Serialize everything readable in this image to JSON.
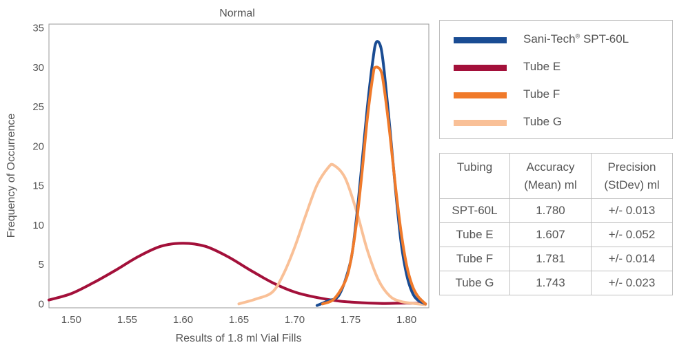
{
  "chart_data": {
    "type": "line",
    "title": "Normal",
    "xlabel": "Results of 1.8 ml Vial Fills",
    "ylabel": "Frequency of Occurrence",
    "xlim": [
      1.48,
      1.82
    ],
    "ylim": [
      -0.5,
      35.5
    ],
    "x_ticks": [
      "1.50",
      "1.55",
      "1.60",
      "1.65",
      "1.70",
      "1.75",
      "1.80"
    ],
    "y_ticks": [
      "0",
      "5",
      "10",
      "15",
      "20",
      "25",
      "30",
      "35"
    ],
    "grid": false,
    "legend_placement": "right",
    "series": [
      {
        "name": "Sani-Tech® SPT-60L",
        "color": "#1a4c93",
        "points": [
          [
            1.72,
            -0.2
          ],
          [
            1.73,
            0.4
          ],
          [
            1.74,
            1.2
          ],
          [
            1.75,
            5.4
          ],
          [
            1.755,
            10.6
          ],
          [
            1.76,
            17.6
          ],
          [
            1.765,
            25.0
          ],
          [
            1.77,
            31.0
          ],
          [
            1.773,
            33.2
          ],
          [
            1.777,
            32.6
          ],
          [
            1.78,
            29.6
          ],
          [
            1.785,
            22.5
          ],
          [
            1.79,
            14.8
          ],
          [
            1.795,
            8.0
          ],
          [
            1.8,
            3.8
          ],
          [
            1.805,
            1.5
          ],
          [
            1.81,
            0.5
          ],
          [
            1.817,
            0.0
          ]
        ]
      },
      {
        "name": "Tube E",
        "color": "#a3103a",
        "points": [
          [
            1.48,
            0.5
          ],
          [
            1.5,
            1.3
          ],
          [
            1.52,
            2.7
          ],
          [
            1.54,
            4.3
          ],
          [
            1.56,
            6.0
          ],
          [
            1.58,
            7.3
          ],
          [
            1.6,
            7.7
          ],
          [
            1.62,
            7.3
          ],
          [
            1.64,
            6.0
          ],
          [
            1.66,
            4.3
          ],
          [
            1.68,
            2.7
          ],
          [
            1.7,
            1.5
          ],
          [
            1.72,
            0.8
          ],
          [
            1.74,
            0.35
          ],
          [
            1.76,
            0.15
          ],
          [
            1.78,
            0.05
          ],
          [
            1.8,
            0.1
          ],
          [
            1.817,
            0.0
          ]
        ]
      },
      {
        "name": "Tube F",
        "color": "#f07a2a",
        "points": [
          [
            1.725,
            0.0
          ],
          [
            1.735,
            0.6
          ],
          [
            1.745,
            2.8
          ],
          [
            1.75,
            5.4
          ],
          [
            1.755,
            10.0
          ],
          [
            1.76,
            16.4
          ],
          [
            1.765,
            23.6
          ],
          [
            1.77,
            29.0
          ],
          [
            1.772,
            30.0
          ],
          [
            1.777,
            29.6
          ],
          [
            1.78,
            27.4
          ],
          [
            1.785,
            21.7
          ],
          [
            1.79,
            15.1
          ],
          [
            1.795,
            9.3
          ],
          [
            1.8,
            5.0
          ],
          [
            1.805,
            2.4
          ],
          [
            1.81,
            1.0
          ],
          [
            1.817,
            0.0
          ]
        ]
      },
      {
        "name": "Tube G",
        "color": "#f9c097",
        "points": [
          [
            1.65,
            0.0
          ],
          [
            1.665,
            0.6
          ],
          [
            1.68,
            1.5
          ],
          [
            1.69,
            3.8
          ],
          [
            1.7,
            7.2
          ],
          [
            1.71,
            11.3
          ],
          [
            1.72,
            15.1
          ],
          [
            1.73,
            17.3
          ],
          [
            1.735,
            17.6
          ],
          [
            1.745,
            16.0
          ],
          [
            1.755,
            11.9
          ],
          [
            1.765,
            6.8
          ],
          [
            1.775,
            3.0
          ],
          [
            1.785,
            1.0
          ],
          [
            1.795,
            0.3
          ],
          [
            1.81,
            0.0
          ],
          [
            1.817,
            -0.1
          ]
        ]
      }
    ]
  },
  "legend": {
    "items": [
      {
        "label": "Sani-Tech",
        "reg": "®",
        "suffix": " SPT-60L",
        "color": "#1a4c93"
      },
      {
        "label": "Tube E",
        "reg": "",
        "suffix": "",
        "color": "#a3103a"
      },
      {
        "label": "Tube F",
        "reg": "",
        "suffix": "",
        "color": "#f07a2a"
      },
      {
        "label": "Tube G",
        "reg": "",
        "suffix": "",
        "color": "#f9c097"
      }
    ]
  },
  "table": {
    "headers": [
      {
        "line1": "Tubing",
        "line2": ""
      },
      {
        "line1": "Accuracy",
        "line2": "(Mean) ml"
      },
      {
        "line1": "Precision",
        "line2": "(StDev) ml"
      }
    ],
    "rows": [
      [
        "SPT-60L",
        "1.780",
        "+/- 0.013"
      ],
      [
        "Tube E",
        "1.607",
        "+/- 0.052"
      ],
      [
        "Tube F",
        "1.781",
        "+/- 0.014"
      ],
      [
        "Tube G",
        "1.743",
        "+/- 0.023"
      ]
    ]
  }
}
